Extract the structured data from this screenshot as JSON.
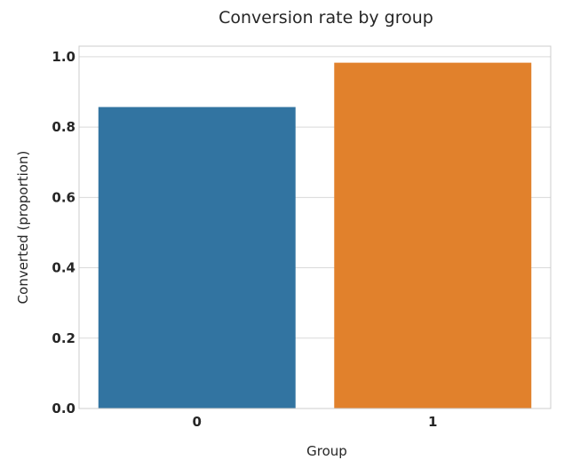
{
  "chart_data": {
    "type": "bar",
    "title": "Conversion rate by group",
    "xlabel": "Group",
    "ylabel": "Converted (proportion)",
    "categories": [
      "0",
      "1"
    ],
    "values": [
      0.857,
      0.983
    ],
    "colors": [
      "#3274a1",
      "#e1812c"
    ],
    "ylim": [
      0,
      1.03
    ],
    "yticks": [
      "0.0",
      "0.2",
      "0.4",
      "0.6",
      "0.8",
      "1.0"
    ],
    "grid": "horizontal",
    "legend": "none"
  }
}
